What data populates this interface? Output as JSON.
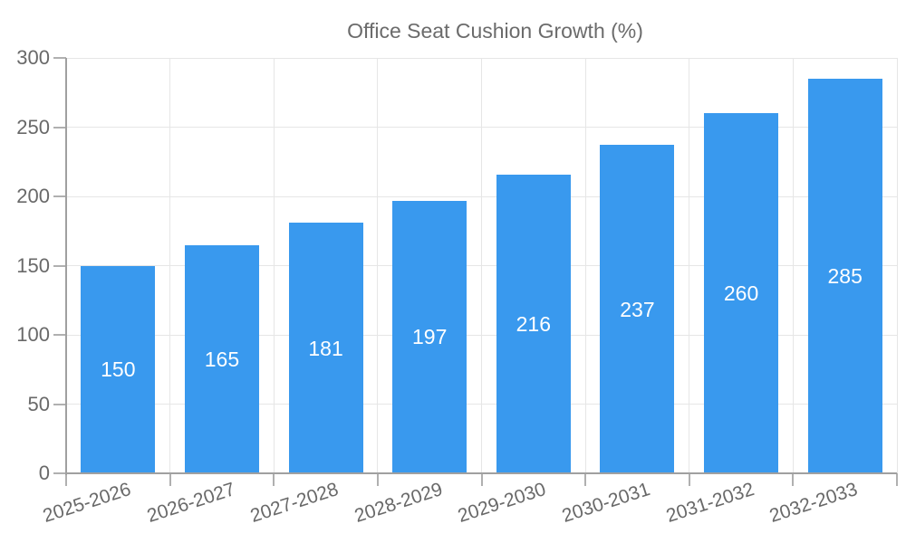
{
  "legend": {
    "label": "Office Seat Cushion Growth (%)"
  },
  "chart_data": {
    "type": "bar",
    "title": "",
    "legend_label": "Office Seat Cushion Growth (%)",
    "legend_position": "top-center",
    "categories": [
      "2025-2026",
      "2026-2027",
      "2027-2028",
      "2028-2029",
      "2029-2030",
      "2030-2031",
      "2031-2032",
      "2032-2033"
    ],
    "values": [
      150,
      165,
      181,
      197,
      216,
      237,
      260,
      285
    ],
    "xlabel": "",
    "ylabel": "",
    "ylim": [
      0,
      300
    ],
    "yticks": [
      0,
      50,
      100,
      150,
      200,
      250,
      300
    ],
    "grid": true,
    "value_labels_inside_bars": true,
    "colors": {
      "bar": "#3999EE",
      "value_label": "#FFFFFF",
      "grid": "#E6E6E6",
      "axis": "#A0A0A0",
      "tick": "#B0B0B0",
      "tick_label": "#696969",
      "legend_text": "#6B6B6B",
      "background": "#FFFFFF"
    }
  }
}
